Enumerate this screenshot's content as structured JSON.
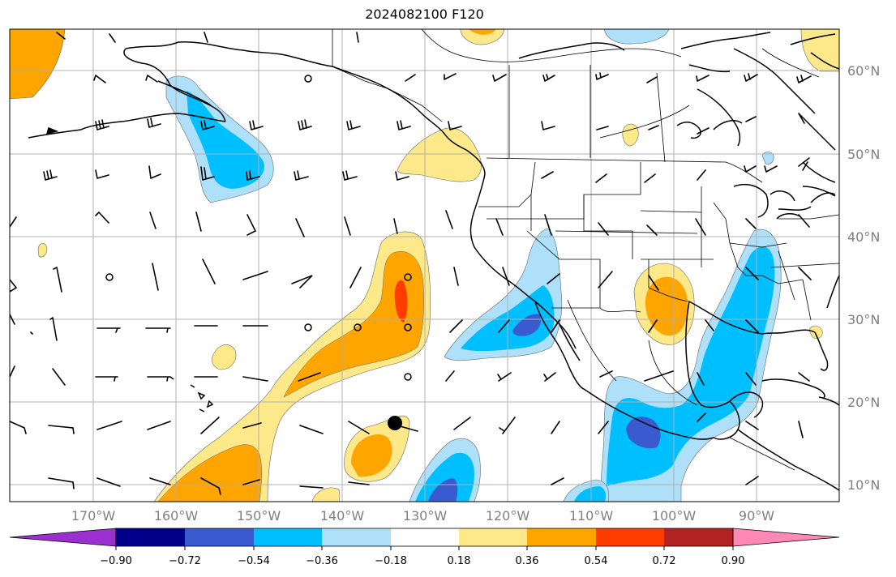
{
  "title": "2024082100 F120",
  "lat_labels": [
    "60°N",
    "50°N",
    "40°N",
    "30°N",
    "20°N",
    "10°N"
  ],
  "lon_labels": [
    "170°W",
    "160°W",
    "150°W",
    "140°W",
    "130°W",
    "120°W",
    "110°W",
    "100°W",
    "90°W"
  ],
  "colorbar": {
    "ticks": [
      "−0.90",
      "−0.72",
      "−0.54",
      "−0.36",
      "−0.18",
      "0.18",
      "0.36",
      "0.54",
      "0.72",
      "0.90"
    ],
    "colors": [
      "#9b30d0",
      "#00008b",
      "#3a5bd0",
      "#00bfff",
      "#aee0fa",
      "#ffffff",
      "#fde98a",
      "#ffa500",
      "#ff3c00",
      "#b22222",
      "#ff88b4"
    ]
  },
  "marker": {
    "type": "dot",
    "color": "#000000"
  }
}
